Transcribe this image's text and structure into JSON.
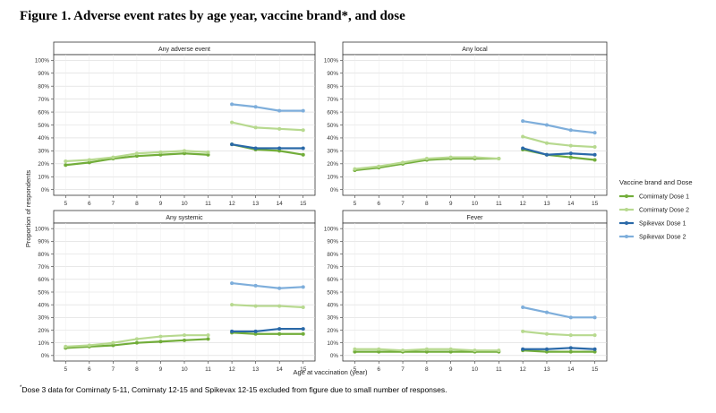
{
  "figure": {
    "title": "Figure 1. Adverse event rates by age year, vaccine brand*, and dose",
    "footnote_marker": "*",
    "footnote": "Dose 3 data for Comirnaty 5-11, Comirnaty 12-15 and Spikevax 12-15 excluded from figure due to small number of responses."
  },
  "colors": {
    "Comirnaty Dose 1": "#72ad3a",
    "Comirnaty Dose 2": "#b7d98f",
    "Spikevax Dose 1": "#2a69a8",
    "Spikevax Dose 2": "#7eaedb"
  },
  "chart_data": {
    "type": "line",
    "xlabel": "Age at vaccination (year)",
    "ylabel": "Proportion of respondents",
    "ylim": [
      0,
      100
    ],
    "yticks": [
      "0%",
      "10%",
      "20%",
      "30%",
      "40%",
      "50%",
      "60%",
      "70%",
      "80%",
      "90%",
      "100%"
    ],
    "xticks": [
      5,
      6,
      7,
      8,
      9,
      10,
      11,
      12,
      13,
      14,
      15
    ],
    "grid": true,
    "legend": {
      "title": "Vaccine brand and Dose",
      "position": "right",
      "entries": [
        "Comirnaty Dose 1",
        "Comirnaty Dose 2",
        "Spikevax Dose 1",
        "Spikevax Dose 2"
      ]
    },
    "panels": [
      {
        "title": "Any adverse event",
        "series": [
          {
            "name": "Comirnaty Dose 1",
            "x": [
              5,
              6,
              7,
              8,
              9,
              10,
              11,
              12,
              13,
              14,
              15
            ],
            "values": [
              19,
              21,
              24,
              26,
              27,
              28,
              27,
              35,
              31,
              30,
              27
            ]
          },
          {
            "name": "Comirnaty Dose 2",
            "x": [
              5,
              6,
              7,
              8,
              9,
              10,
              11,
              12,
              13,
              14,
              15
            ],
            "values": [
              22,
              23,
              25,
              28,
              29,
              30,
              29,
              52,
              48,
              47,
              46
            ]
          },
          {
            "name": "Spikevax Dose 1",
            "x": [
              12,
              13,
              14,
              15
            ],
            "values": [
              35,
              32,
              32,
              32
            ]
          },
          {
            "name": "Spikevax Dose 2",
            "x": [
              12,
              13,
              14,
              15
            ],
            "values": [
              66,
              64,
              61,
              61
            ]
          }
        ]
      },
      {
        "title": "Any local",
        "series": [
          {
            "name": "Comirnaty Dose 1",
            "x": [
              5,
              6,
              7,
              8,
              9,
              10,
              11,
              12,
              13,
              14,
              15
            ],
            "values": [
              15,
              17,
              20,
              23,
              24,
              24,
              24,
              31,
              27,
              25,
              23
            ]
          },
          {
            "name": "Comirnaty Dose 2",
            "x": [
              5,
              6,
              7,
              8,
              9,
              10,
              11,
              12,
              13,
              14,
              15
            ],
            "values": [
              16,
              18,
              21,
              24,
              25,
              25,
              24,
              41,
              36,
              34,
              33
            ]
          },
          {
            "name": "Spikevax Dose 1",
            "x": [
              12,
              13,
              14,
              15
            ],
            "values": [
              32,
              27,
              28,
              27
            ]
          },
          {
            "name": "Spikevax Dose 2",
            "x": [
              12,
              13,
              14,
              15
            ],
            "values": [
              53,
              50,
              46,
              44
            ]
          }
        ]
      },
      {
        "title": "Any systemic",
        "series": [
          {
            "name": "Comirnaty Dose 1",
            "x": [
              5,
              6,
              7,
              8,
              9,
              10,
              11,
              12,
              13,
              14,
              15
            ],
            "values": [
              6,
              7,
              8,
              10,
              11,
              12,
              13,
              18,
              17,
              17,
              17
            ]
          },
          {
            "name": "Comirnaty Dose 2",
            "x": [
              5,
              6,
              7,
              8,
              9,
              10,
              11,
              12,
              13,
              14,
              15
            ],
            "values": [
              7,
              8,
              10,
              13,
              15,
              16,
              16,
              40,
              39,
              39,
              38
            ]
          },
          {
            "name": "Spikevax Dose 1",
            "x": [
              12,
              13,
              14,
              15
            ],
            "values": [
              19,
              19,
              21,
              21
            ]
          },
          {
            "name": "Spikevax Dose 2",
            "x": [
              12,
              13,
              14,
              15
            ],
            "values": [
              57,
              55,
              53,
              54
            ]
          }
        ]
      },
      {
        "title": "Fever",
        "series": [
          {
            "name": "Comirnaty Dose 1",
            "x": [
              5,
              6,
              7,
              8,
              9,
              10,
              11,
              12,
              13,
              14,
              15
            ],
            "values": [
              3,
              3,
              3,
              3,
              3,
              3,
              3,
              4,
              3,
              3,
              3
            ]
          },
          {
            "name": "Comirnaty Dose 2",
            "x": [
              5,
              6,
              7,
              8,
              9,
              10,
              11,
              12,
              13,
              14,
              15
            ],
            "values": [
              5,
              5,
              4,
              5,
              5,
              4,
              4,
              19,
              17,
              16,
              16
            ]
          },
          {
            "name": "Spikevax Dose 1",
            "x": [
              12,
              13,
              14,
              15
            ],
            "values": [
              5,
              5,
              6,
              5
            ]
          },
          {
            "name": "Spikevax Dose 2",
            "x": [
              12,
              13,
              14,
              15
            ],
            "values": [
              38,
              34,
              30,
              30
            ]
          }
        ]
      }
    ]
  }
}
